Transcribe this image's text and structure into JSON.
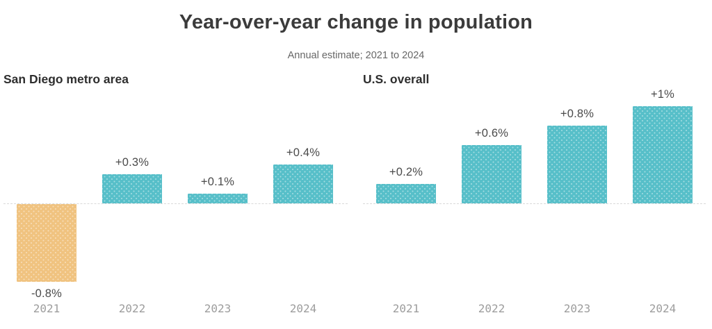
{
  "chart_data": {
    "type": "bar",
    "title": "Year-over-year change in population",
    "subtitle": "Annual estimate; 2021 to 2024",
    "unit": "percent",
    "categories": [
      "2021",
      "2022",
      "2023",
      "2024"
    ],
    "panels": [
      {
        "title": "San Diego metro area",
        "values": [
          -0.8,
          0.3,
          0.1,
          0.4
        ],
        "labels": [
          "-0.8%",
          "+0.3%",
          "+0.1%",
          "+0.4%"
        ]
      },
      {
        "title": "U.S. overall",
        "values": [
          0.2,
          0.6,
          0.8,
          1.0
        ],
        "labels": [
          "+0.2%",
          "+0.6%",
          "+0.8%",
          "+1%"
        ]
      }
    ],
    "colors": {
      "positive_bar": "#57BFC9",
      "negative_bar": "#F0C380",
      "title_text": "#3B3B3B",
      "subtitle_text": "#666666",
      "value_label_text": "#4A4A4A",
      "year_label_text": "#9D9D9D",
      "baseline": "#D9D9D9"
    },
    "baseline_value": 0,
    "ylim": [
      -0.8,
      1.0
    ],
    "grid": false,
    "legend": false
  }
}
